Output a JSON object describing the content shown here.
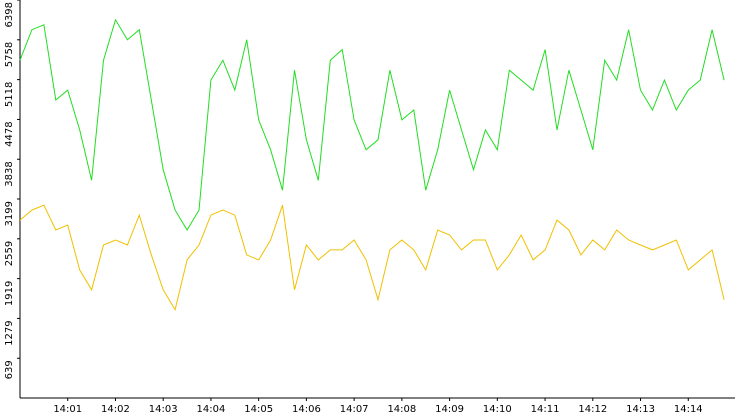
{
  "chart_data": {
    "type": "line",
    "x": [
      840,
      840.25,
      840.5,
      840.75,
      841,
      841.25,
      841.5,
      841.75,
      842,
      842.25,
      842.5,
      842.75,
      843,
      843.25,
      843.5,
      843.75,
      844,
      844.25,
      844.5,
      844.75,
      845,
      845.25,
      845.5,
      845.75,
      846,
      846.25,
      846.5,
      846.75,
      847,
      847.25,
      847.5,
      847.75,
      848,
      848.25,
      848.5,
      848.75,
      849,
      849.25,
      849.5,
      849.75,
      850,
      850.25,
      850.5,
      850.75,
      851,
      851.25,
      851.5,
      851.75,
      852,
      852.25,
      852.5,
      852.75,
      853,
      853.25,
      853.5,
      853.75,
      854,
      854.25,
      854.5,
      854.75
    ],
    "series": [
      {
        "color": "#22dd22",
        "values": [
          5430,
          5920,
          6000,
          4790,
          4950,
          4310,
          3500,
          5430,
          6080,
          5760,
          5920,
          4790,
          3670,
          3020,
          2700,
          3020,
          5110,
          5430,
          4950,
          5760,
          4470,
          3990,
          3340,
          5270,
          4150,
          3500,
          5430,
          5600,
          4470,
          3990,
          4150,
          5270,
          4470,
          4630,
          3340,
          3990,
          4950,
          4310,
          3670,
          4310,
          3990,
          5270,
          5110,
          4950,
          5600,
          4310,
          5270,
          4630,
          3990,
          5430,
          5110,
          5920,
          4950,
          4630,
          5110,
          4630,
          4950,
          5110,
          5920,
          5110
        ]
      },
      {
        "color": "#f0c000",
        "values": [
          2860,
          3020,
          3100,
          2700,
          2780,
          2060,
          1740,
          2460,
          2540,
          2460,
          2940,
          2300,
          1740,
          1420,
          2220,
          2460,
          2940,
          3020,
          2940,
          2300,
          2220,
          2540,
          3100,
          1740,
          2460,
          2220,
          2380,
          2380,
          2540,
          2220,
          1580,
          2380,
          2540,
          2380,
          2060,
          2700,
          2620,
          2380,
          2540,
          2540,
          2060,
          2300,
          2620,
          2220,
          2380,
          2860,
          2700,
          2300,
          2540,
          2380,
          2700,
          2540,
          2460,
          2380,
          2460,
          2540,
          2060,
          2220,
          2380,
          1580
        ]
      }
    ],
    "xlim": [
      840,
      855
    ],
    "xticks": [
      {
        "value": 841,
        "label": "14:01"
      },
      {
        "value": 842,
        "label": "14:02"
      },
      {
        "value": 843,
        "label": "14:03"
      },
      {
        "value": 844,
        "label": "14:04"
      },
      {
        "value": 845,
        "label": "14:05"
      },
      {
        "value": 846,
        "label": "14:06"
      },
      {
        "value": 847,
        "label": "14:07"
      },
      {
        "value": 848,
        "label": "14:08"
      },
      {
        "value": 849,
        "label": "14:09"
      },
      {
        "value": 850,
        "label": "14:10"
      },
      {
        "value": 851,
        "label": "14:11"
      },
      {
        "value": 852,
        "label": "14:12"
      },
      {
        "value": 853,
        "label": "14:13"
      },
      {
        "value": 854,
        "label": "14:14"
      }
    ],
    "ylim": [
      0,
      6398
    ],
    "yticks": [
      639,
      1279,
      1919,
      2559,
      3199,
      3838,
      4478,
      5118,
      5758,
      6398
    ]
  }
}
